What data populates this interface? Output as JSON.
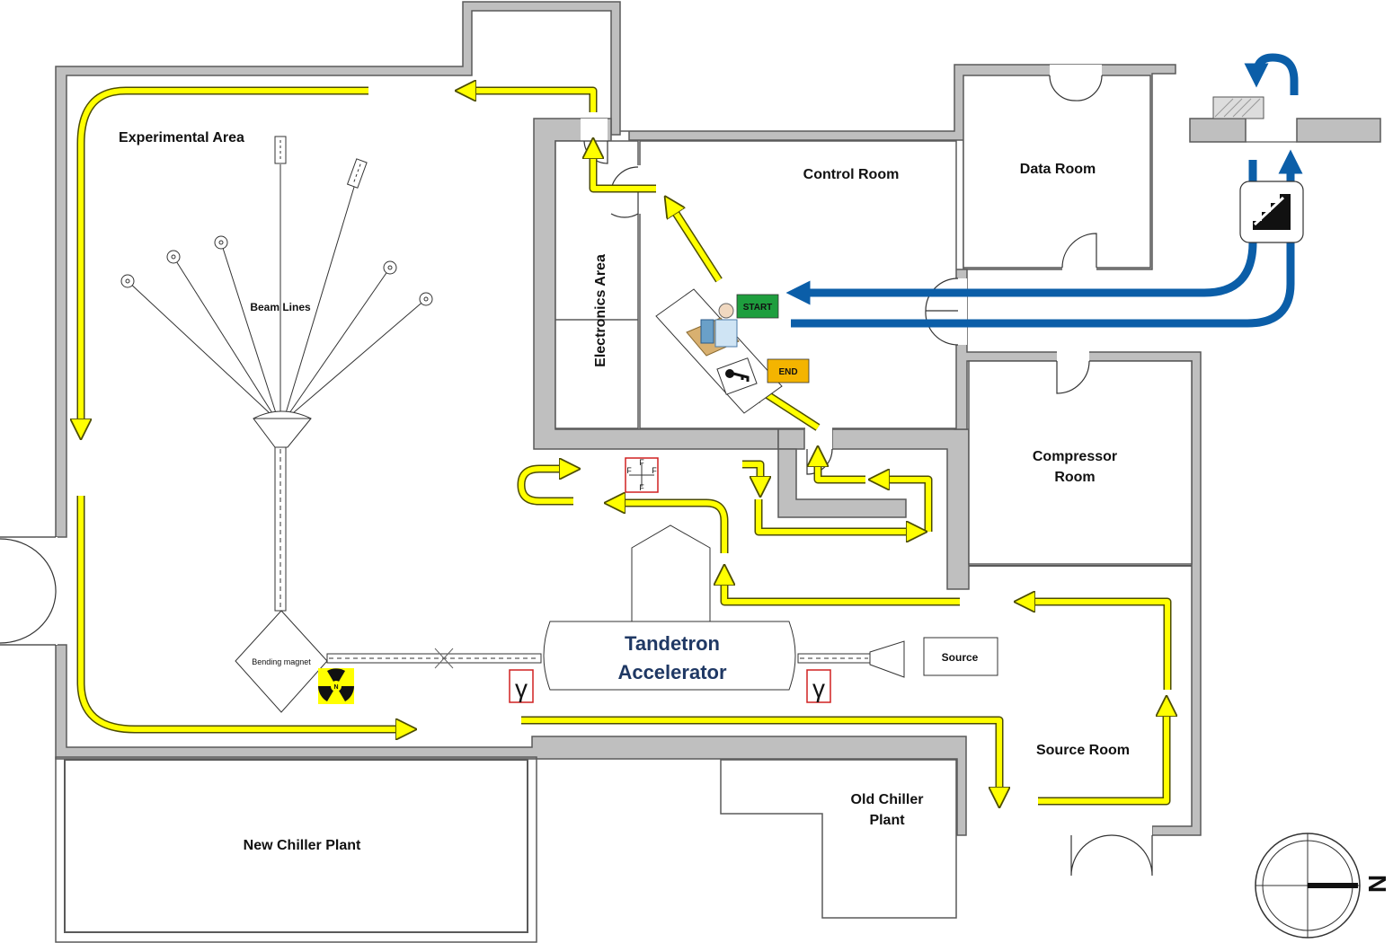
{
  "rooms": {
    "experimental_area": "Experimental Area",
    "beam_lines": "Beam Lines",
    "control_room": "Control Room",
    "data_room": "Data Room",
    "electronics_area": "Electronics Area",
    "compressor_room_line1": "Compressor",
    "compressor_room_line2": "Room",
    "source_room": "Source Room",
    "old_chiller_line1": "Old Chiller",
    "old_chiller_line2": "Plant",
    "new_chiller": "New Chiller Plant"
  },
  "equipment": {
    "accelerator_line1": "Tandetron",
    "accelerator_line2": "Accelerator",
    "bending_magnet": "Bending magnet",
    "source": "Source"
  },
  "markers": {
    "start": "START",
    "end": "END",
    "gamma": "γ",
    "fluorine": "F",
    "neutron": "N",
    "north": "N"
  },
  "colors": {
    "route": "#ffff00",
    "route_outline": "#4d4d00",
    "entry_route": "#0b5ea8",
    "wall": "#bfbfbf",
    "start_badge": "#1e9e3e",
    "end_badge": "#f4b400",
    "accelerator_text": "#1f3864"
  },
  "icons": [
    "stairs-icon",
    "operator-desk-icon",
    "key-icon",
    "radiation-icon",
    "gamma-icon",
    "fluorine-hazard-icon",
    "compass-icon",
    "u-turn-arrow-icon"
  ]
}
